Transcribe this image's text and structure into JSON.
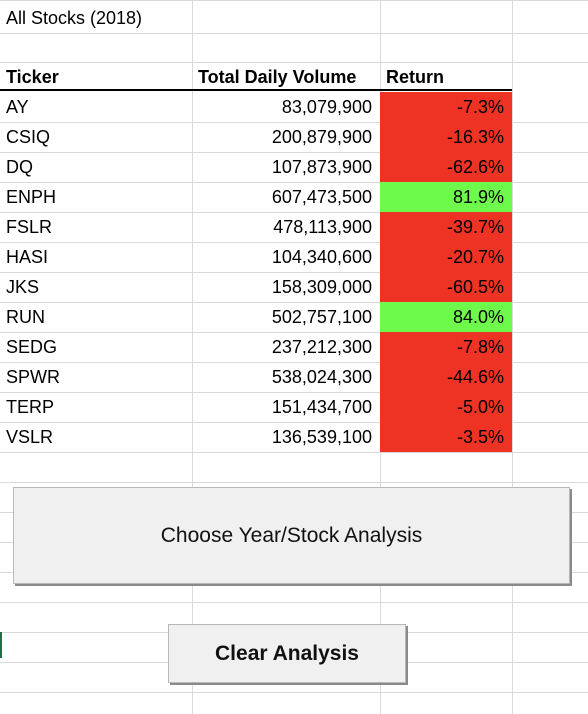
{
  "sheet": {
    "title": "All Stocks (2018)",
    "headers": {
      "ticker": "Ticker",
      "volume": "Total Daily Volume",
      "return": "Return"
    },
    "rows": [
      {
        "ticker": "AY",
        "volume": "83,079,900",
        "return": "-7.3%",
        "status": "negative"
      },
      {
        "ticker": "CSIQ",
        "volume": "200,879,900",
        "return": "-16.3%",
        "status": "negative"
      },
      {
        "ticker": "DQ",
        "volume": "107,873,900",
        "return": "-62.6%",
        "status": "negative"
      },
      {
        "ticker": "ENPH",
        "volume": "607,473,500",
        "return": "81.9%",
        "status": "positive"
      },
      {
        "ticker": "FSLR",
        "volume": "478,113,900",
        "return": "-39.7%",
        "status": "negative"
      },
      {
        "ticker": "HASI",
        "volume": "104,340,600",
        "return": "-20.7%",
        "status": "negative"
      },
      {
        "ticker": "JKS",
        "volume": "158,309,000",
        "return": "-60.5%",
        "status": "negative"
      },
      {
        "ticker": "RUN",
        "volume": "502,757,100",
        "return": "84.0%",
        "status": "positive"
      },
      {
        "ticker": "SEDG",
        "volume": "237,212,300",
        "return": "-7.8%",
        "status": "negative"
      },
      {
        "ticker": "SPWR",
        "volume": "538,024,300",
        "return": "-44.6%",
        "status": "negative"
      },
      {
        "ticker": "TERP",
        "volume": "151,434,700",
        "return": "-5.0%",
        "status": "negative"
      },
      {
        "ticker": "VSLR",
        "volume": "136,539,100",
        "return": "-3.5%",
        "status": "negative"
      }
    ]
  },
  "buttons": {
    "choose_label": "Choose Year/Stock Analysis",
    "clear_label": "Clear Analysis"
  },
  "colors": {
    "negative": "#ee3224",
    "positive": "#6efa4a",
    "gridline": "#d9d9d9"
  }
}
